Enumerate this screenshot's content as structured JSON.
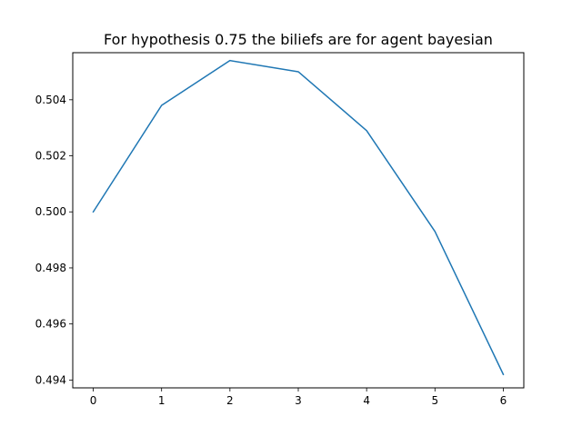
{
  "chart_data": {
    "type": "line",
    "title": "For hypothesis 0.75 the biliefs are for agent bayesian",
    "xlabel": "",
    "ylabel": "",
    "x": [
      0,
      1,
      2,
      3,
      4,
      5,
      6
    ],
    "series": [
      {
        "values": [
          0.5,
          0.5038,
          0.5054,
          0.505,
          0.5029,
          0.4993,
          0.4942
        ],
        "color": "#1f77b4"
      }
    ],
    "xlim": [
      -0.3,
      6.3
    ],
    "ylim": [
      0.49372,
      0.50568
    ],
    "xticks": [
      0,
      1,
      2,
      3,
      4,
      5,
      6
    ],
    "xtick_labels": [
      "0",
      "1",
      "2",
      "3",
      "4",
      "5",
      "6"
    ],
    "yticks": [
      0.494,
      0.496,
      0.498,
      0.5,
      0.502,
      0.504
    ],
    "ytick_labels": [
      "0.494",
      "0.496",
      "0.498",
      "0.500",
      "0.502",
      "0.504"
    ],
    "grid": false,
    "legend": "none"
  }
}
